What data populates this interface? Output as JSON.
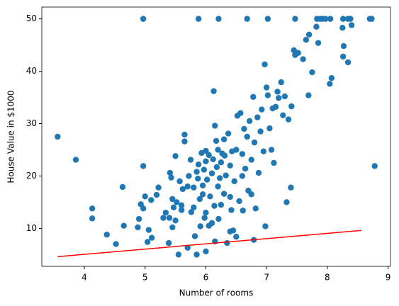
{
  "chart_data": {
    "type": "scatter",
    "xlabel": "Number of rooms",
    "ylabel": "House Value in $1000",
    "color": "#1f77b4",
    "x": [
      4.97,
      5.88,
      6.21,
      6.68,
      7.02,
      7.47,
      7.83,
      7.88,
      7.92,
      7.97,
      8.05,
      8.26,
      8.34,
      8.38,
      8.7,
      8.73,
      3.56,
      3.86,
      4.13,
      4.13,
      4.37,
      4.52,
      4.63,
      4.65,
      4.88,
      4.9,
      4.93,
      4.97,
      4.97,
      5.0,
      5.04,
      5.06,
      5.1,
      5.11,
      5.19,
      5.22,
      5.34,
      5.39,
      5.4,
      5.41,
      5.43,
      5.45,
      5.47,
      5.5,
      5.5,
      5.52,
      5.55,
      5.57,
      5.6,
      5.62,
      5.65,
      5.65,
      5.7,
      5.72,
      5.75,
      5.76,
      5.8,
      5.82,
      5.85,
      5.87,
      5.88,
      5.9,
      5.91,
      5.93,
      5.95,
      5.97,
      5.98,
      6.0,
      6.0,
      6.02,
      6.05,
      6.07,
      6.1,
      6.12,
      6.13,
      6.14,
      6.15,
      6.17,
      6.18,
      6.2,
      6.21,
      6.23,
      6.25,
      6.27,
      6.3,
      6.31,
      6.33,
      6.35,
      6.37,
      6.4,
      6.42,
      6.43,
      6.45,
      6.47,
      6.5,
      6.52,
      6.55,
      6.57,
      6.6,
      6.61,
      6.63,
      6.65,
      6.68,
      6.7,
      6.72,
      6.75,
      6.78,
      6.79,
      6.8,
      6.82,
      6.85,
      6.87,
      6.9,
      6.92,
      6.95,
      6.97,
      6.98,
      7.0,
      7.02,
      7.05,
      7.08,
      7.1,
      7.12,
      7.15,
      7.18,
      7.2,
      7.24,
      7.27,
      7.3,
      7.33,
      7.36,
      7.4,
      7.41,
      7.45,
      7.47,
      7.52,
      7.6,
      7.65,
      7.69,
      7.7,
      7.75,
      7.82,
      7.85,
      8.04,
      8.07,
      8.25,
      8.26,
      8.27,
      8.34,
      8.4,
      8.78,
      6.0,
      6.1,
      6.25,
      6.5,
      5.7,
      5.85,
      6.4,
      6.6,
      6.2,
      5.95,
      6.05,
      6.3,
      6.0,
      6.4,
      6.75,
      6.15,
      5.6,
      5.3,
      5.45,
      5.8
    ],
    "values": [
      50,
      50,
      50,
      50,
      50,
      50,
      50,
      50,
      50,
      50,
      50,
      50,
      50,
      50,
      50,
      50,
      27.5,
      23.1,
      13.8,
      11.9,
      8.8,
      7.0,
      17.9,
      10.5,
      10.2,
      11.8,
      14.6,
      21.9,
      13.8,
      16.1,
      7.4,
      9.7,
      15.4,
      8.2,
      16.4,
      17.8,
      13.0,
      7.2,
      12.0,
      20.6,
      19.7,
      10.2,
      14.0,
      23.8,
      11.5,
      15.0,
      5.0,
      19.0,
      14.4,
      17.5,
      27.9,
      26.6,
      18.0,
      20.0,
      23.1,
      13.1,
      17.8,
      8.5,
      20.8,
      19.5,
      22.2,
      15.6,
      10.4,
      24.4,
      18.2,
      21.2,
      12.0,
      5.6,
      22.8,
      19.3,
      24.0,
      16.1,
      20.5,
      23.2,
      36.2,
      14.3,
      29.6,
      26.7,
      21.7,
      25.0,
      11.8,
      19.6,
      22.6,
      24.3,
      16.6,
      23.9,
      20.1,
      7.2,
      28.1,
      22.0,
      13.5,
      24.7,
      9.6,
      19.0,
      25.0,
      31.5,
      15.2,
      32.0,
      24.2,
      13.4,
      29.0,
      21.4,
      27.5,
      17.2,
      30.5,
      23.1,
      35.1,
      7.8,
      26.4,
      13.8,
      31.2,
      20.6,
      28.5,
      32.7,
      24.7,
      41.3,
      10.4,
      36.9,
      35.4,
      29.1,
      25.0,
      32.9,
      22.5,
      33.2,
      36.1,
      34.9,
      37.9,
      31.6,
      35.2,
      15.0,
      30.8,
      17.8,
      33.3,
      44.0,
      43.1,
      43.5,
      42.3,
      46.0,
      35.4,
      47.0,
      39.8,
      48.5,
      45.4,
      37.6,
      38.7,
      48.3,
      42.8,
      44.8,
      41.7,
      48.8,
      21.9,
      13.0,
      11.0,
      14.5,
      8.4,
      6.3,
      5.0,
      16.0,
      20.0,
      18.0,
      16.5,
      10.5,
      27.0,
      24.8,
      9.4,
      16.5,
      7.5,
      13.5,
      12.0,
      15.6,
      14.0
    ],
    "line": {
      "color": "#ff0000",
      "x": [
        3.56,
        8.56
      ],
      "values": [
        4.6,
        9.6
      ]
    },
    "xlim": [
      3.3,
      9.04
    ],
    "ylim": [
      2.75,
      52.25
    ],
    "xticks": [
      4,
      5,
      6,
      7,
      8,
      9
    ],
    "yticks": [
      10,
      20,
      30,
      40,
      50
    ]
  }
}
